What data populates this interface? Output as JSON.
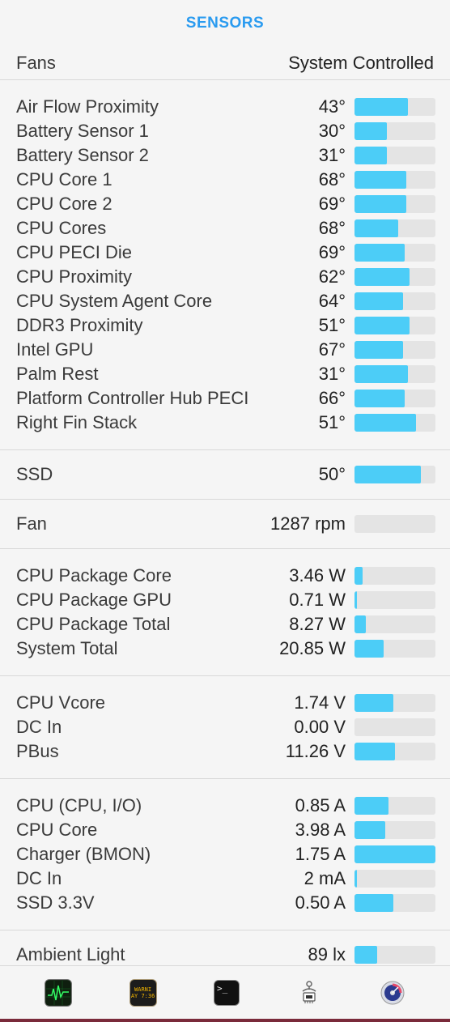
{
  "header": {
    "title": "SENSORS"
  },
  "fans": {
    "label": "Fans",
    "value": "System Controlled"
  },
  "temperatures": [
    {
      "label": "Air Flow Proximity",
      "value": "43°",
      "level": 0.66
    },
    {
      "label": "Battery Sensor 1",
      "value": "30°",
      "level": 0.4
    },
    {
      "label": "Battery Sensor 2",
      "value": "31°",
      "level": 0.4
    },
    {
      "label": "CPU Core 1",
      "value": "68°",
      "level": 0.64
    },
    {
      "label": "CPU Core 2",
      "value": "69°",
      "level": 0.64
    },
    {
      "label": "CPU Cores",
      "value": "68°",
      "level": 0.54
    },
    {
      "label": "CPU PECI Die",
      "value": "69°",
      "level": 0.62
    },
    {
      "label": "CPU Proximity",
      "value": "62°",
      "level": 0.68
    },
    {
      "label": "CPU System Agent Core",
      "value": "64°",
      "level": 0.6
    },
    {
      "label": "DDR3 Proximity",
      "value": "51°",
      "level": 0.68
    },
    {
      "label": "Intel GPU",
      "value": "67°",
      "level": 0.6
    },
    {
      "label": "Palm Rest",
      "value": "31°",
      "level": 0.66
    },
    {
      "label": "Platform Controller Hub PECI",
      "value": "66°",
      "level": 0.62
    },
    {
      "label": "Right Fin Stack",
      "value": "51°",
      "level": 0.76
    }
  ],
  "ssd": [
    {
      "label": "SSD",
      "value": "50°",
      "level": 0.82
    }
  ],
  "fan": [
    {
      "label": "Fan",
      "value": "1287 rpm",
      "level": 0.0
    }
  ],
  "power": [
    {
      "label": "CPU Package Core",
      "value": "3.46 W",
      "level": 0.1
    },
    {
      "label": "CPU Package GPU",
      "value": "0.71 W",
      "level": 0.03
    },
    {
      "label": "CPU Package Total",
      "value": "8.27 W",
      "level": 0.14
    },
    {
      "label": "System Total",
      "value": "20.85 W",
      "level": 0.36
    }
  ],
  "voltage": [
    {
      "label": "CPU Vcore",
      "value": "1.74 V",
      "level": 0.48
    },
    {
      "label": "DC In",
      "value": "0.00 V",
      "level": 0.0
    },
    {
      "label": "PBus",
      "value": "11.26 V",
      "level": 0.5
    }
  ],
  "current": [
    {
      "label": "CPU (CPU, I/O)",
      "value": "0.85 A",
      "level": 0.42
    },
    {
      "label": "CPU Core",
      "value": "3.98 A",
      "level": 0.38
    },
    {
      "label": "Charger (BMON)",
      "value": "1.75 A",
      "level": 1.0
    },
    {
      "label": "DC In",
      "value": "2 mA",
      "level": 0.02
    },
    {
      "label": "SSD 3.3V",
      "value": "0.50 A",
      "level": 0.48
    }
  ],
  "light": [
    {
      "label": "Ambient Light",
      "value": "89 lx",
      "level": 0.28
    }
  ],
  "footer": {
    "icons": [
      "activity-monitor-icon",
      "console-icon",
      "terminal-icon",
      "system-information-icon",
      "disk-utility-icon"
    ],
    "console_text": "WARNI",
    "console_time": "AY 7:36",
    "terminal_prompt": ">_"
  },
  "colors": {
    "accent": "#2a9bf0",
    "bar_fill": "#4ccdf7",
    "bar_track": "#e4e4e4"
  }
}
